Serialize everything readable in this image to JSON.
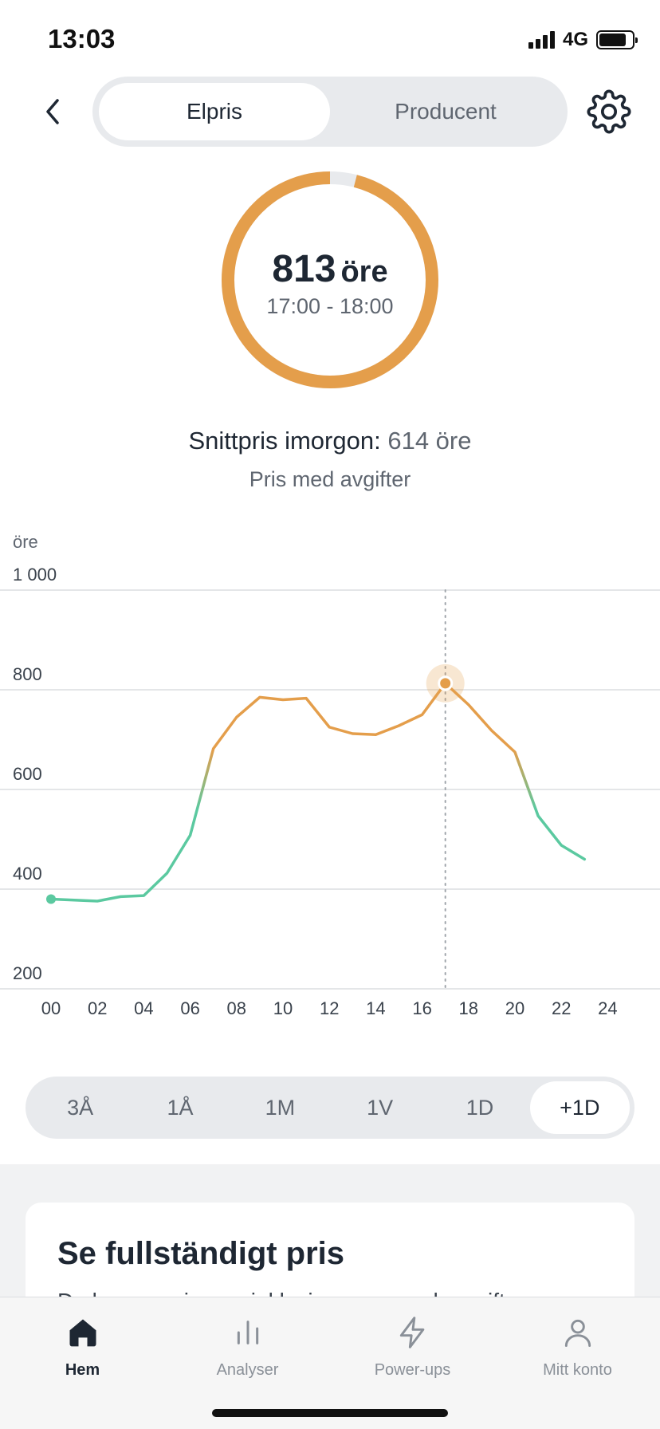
{
  "status": {
    "time": "13:03",
    "network": "4G"
  },
  "header": {
    "tabs": [
      {
        "label": "Elpris",
        "active": true
      },
      {
        "label": "Producent",
        "active": false
      }
    ]
  },
  "gauge": {
    "value": "813",
    "unit": "öre",
    "time_range": "17:00 - 18:00",
    "fill_fraction": 0.96
  },
  "summary": {
    "avg_label": "Snittpris imorgon:",
    "avg_value": "614 öre",
    "subtitle": "Pris med avgifter"
  },
  "chart_data": {
    "type": "line",
    "ylabel": "öre",
    "ylim": [
      200,
      1000
    ],
    "y_ticks": [
      "200",
      "400",
      "600",
      "800",
      "1 000"
    ],
    "x_ticks": [
      "00",
      "02",
      "04",
      "06",
      "08",
      "10",
      "12",
      "14",
      "16",
      "18",
      "20",
      "22",
      "24"
    ],
    "x": [
      0,
      1,
      2,
      3,
      4,
      5,
      6,
      7,
      8,
      9,
      10,
      11,
      12,
      13,
      14,
      15,
      16,
      17,
      18,
      19,
      20,
      21,
      22,
      23
    ],
    "values": [
      380,
      378,
      376,
      385,
      387,
      432,
      508,
      682,
      745,
      785,
      780,
      783,
      725,
      712,
      710,
      728,
      750,
      813,
      770,
      718,
      675,
      547,
      488,
      460
    ],
    "highlight_x": 17,
    "colors": {
      "low": "#5bc9a0",
      "high": "#e49e4b"
    }
  },
  "range_selector": [
    "3Å",
    "1Å",
    "1M",
    "1V",
    "1D",
    "+1D"
  ],
  "range_selected": "+1D",
  "card": {
    "title": "Se fullständigt pris",
    "text": "Du kan se priserna inklusive moms och avgifter"
  },
  "tabbar": [
    {
      "label": "Hem",
      "icon": "home-icon",
      "active": true
    },
    {
      "label": "Analyser",
      "icon": "bar-chart-icon",
      "active": false
    },
    {
      "label": "Power-ups",
      "icon": "lightning-icon",
      "active": false
    },
    {
      "label": "Mitt konto",
      "icon": "user-icon",
      "active": false
    }
  ]
}
